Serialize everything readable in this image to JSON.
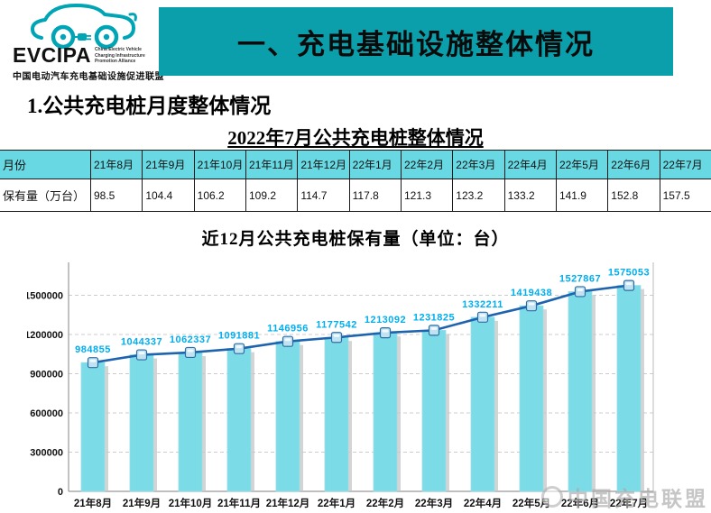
{
  "logo": {
    "acronym": "EVCIPA",
    "subtext_lines": [
      "China Electric Vehicle",
      "Charging Infrastructure",
      "Promotion Alliance"
    ],
    "cn_name": "中国电动汽车充电基础设施促进联盟",
    "accent_color": "#00A5B5"
  },
  "banner": {
    "title": "一、充电基础设施整体情况",
    "bg_color": "#0A9FAA"
  },
  "section": {
    "heading": "1.公共充电桩月度整体情况"
  },
  "table": {
    "title": "2022年7月公共充电桩整体情况",
    "row_header": "月份",
    "value_header": "保有量（万台）",
    "header_bg": "#68D9E3",
    "months": [
      "21年8月",
      "21年9月",
      "21年10月",
      "21年11月",
      "21年12月",
      "22年1月",
      "22年2月",
      "22年3月",
      "22年4月",
      "22年5月",
      "22年6月",
      "22年7月"
    ],
    "values": [
      "98.5",
      "104.4",
      "106.2",
      "109.2",
      "114.7",
      "117.8",
      "121.3",
      "123.2",
      "133.2",
      "141.9",
      "152.8",
      "157.5"
    ]
  },
  "chart_data": {
    "type": "bar",
    "overlay": "line",
    "title": "近12月公共充电桩保有量（单位：台）",
    "categories": [
      "21年8月",
      "21年9月",
      "21年10月",
      "21年11月",
      "21年12月",
      "22年1月",
      "22年2月",
      "22年3月",
      "22年4月",
      "22年5月",
      "22年6月",
      "22年7月"
    ],
    "values": [
      984855,
      1044337,
      1062337,
      1091881,
      1146956,
      1177542,
      1213092,
      1231825,
      1332211,
      1419438,
      1527867,
      1575053
    ],
    "ylim": [
      0,
      1725000
    ],
    "yticks": [
      0,
      300000,
      600000,
      900000,
      1200000,
      1500000
    ],
    "grid": "dashed-horizontal",
    "legend": "none",
    "bar_color": "#7BDCE8",
    "bar_shadow_color": "#c6c6c6",
    "line_color": "#1E63AE",
    "marker_color": "#BFE3F2",
    "marker_border_color": "#2E6DA4",
    "label_color": "#00AEEF"
  },
  "watermark": {
    "text": "中国充电联盟"
  }
}
